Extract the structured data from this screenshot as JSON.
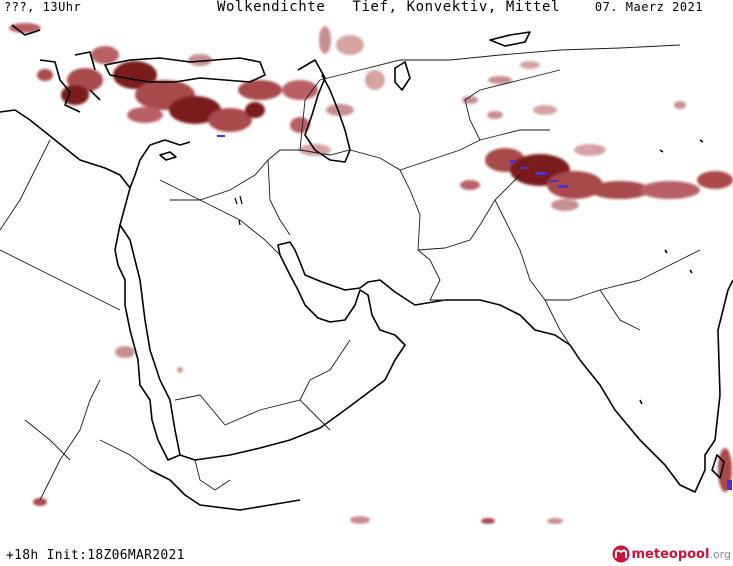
{
  "header": {
    "location": "???, 13Uhr",
    "title": "Wolkendichte   Tief, Konvektiv, Mittel",
    "date": "07. Maerz 2021"
  },
  "footer": {
    "run_info": "+18h Init:18Z06MAR2021",
    "brand_main": "meteopool",
    "brand_tld": ".org"
  },
  "colors": {
    "cloud_dense": "#7a1a1e",
    "cloud_medium": "#a8484c",
    "cloud_light": "#d5a3a3",
    "cloud_core": "#4b2fd2",
    "coastline": "#000000",
    "border": "#1a1a1a"
  }
}
